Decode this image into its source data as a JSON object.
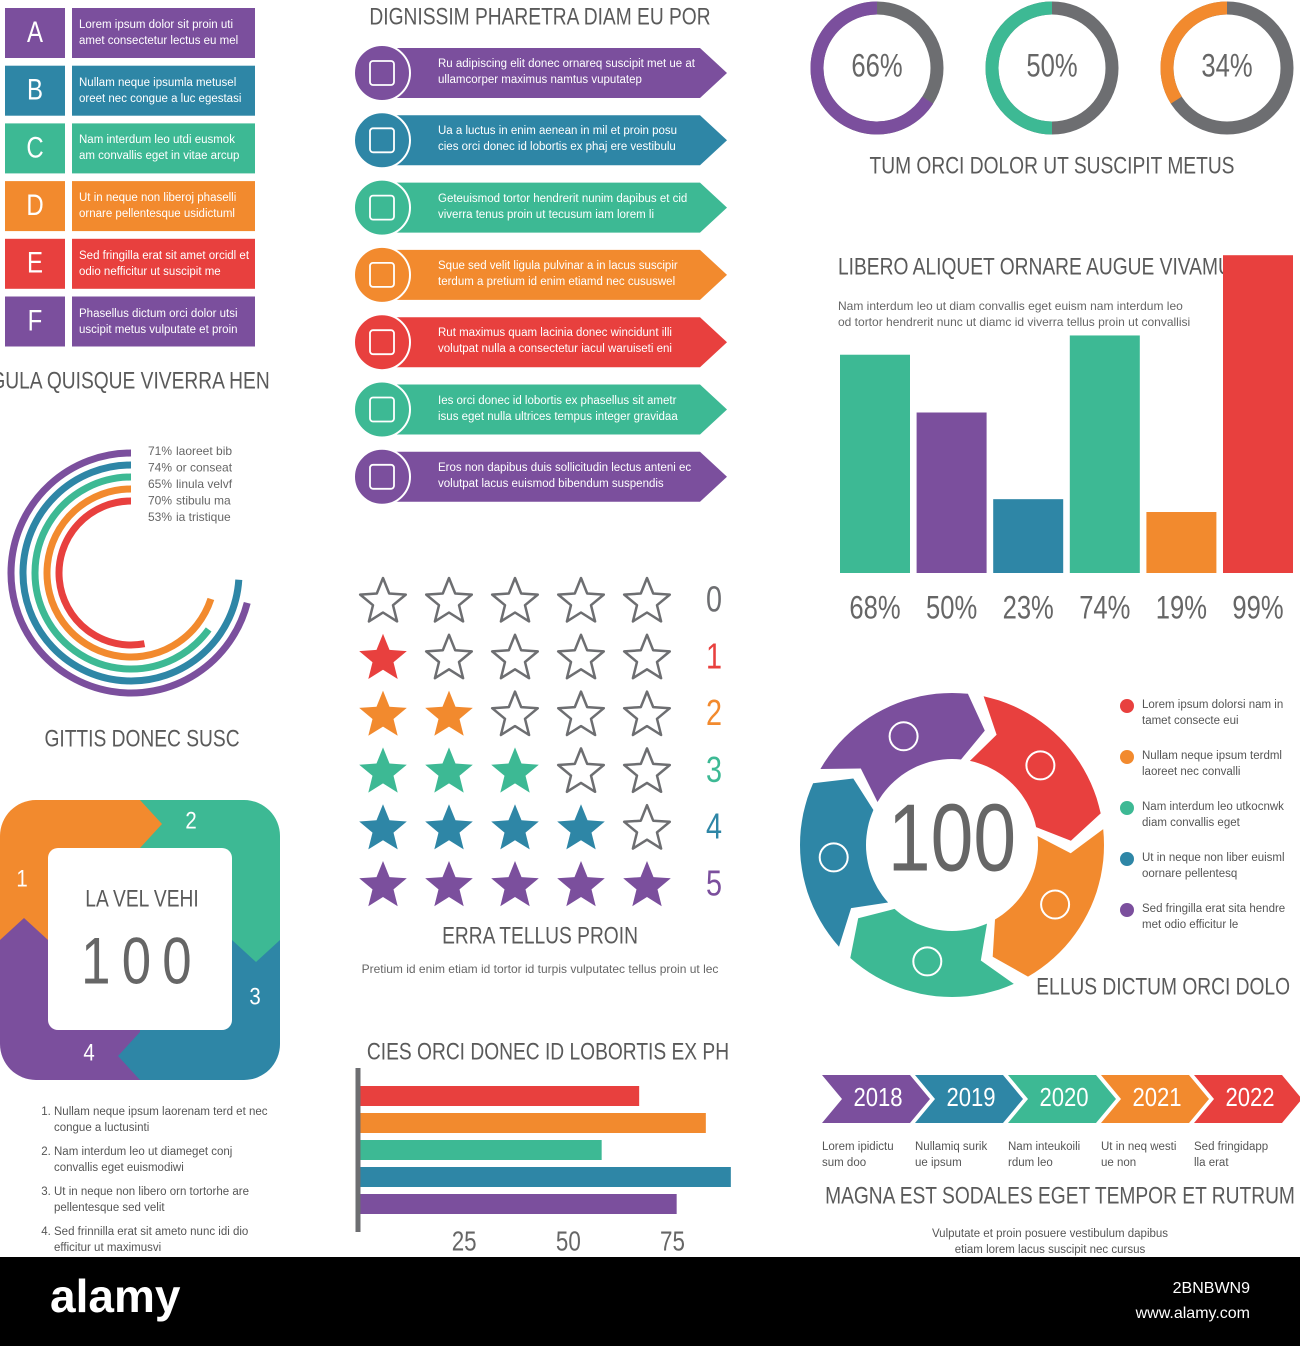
{
  "letter_list": {
    "title": "GULA QUISQUE VIVERRA HEN",
    "items": [
      {
        "letter": "A",
        "text": "Lorem ipsum dolor sit proin uti amet consectetur lectus eu mel",
        "color": "#7b4f9d"
      },
      {
        "letter": "B",
        "text": "Nullam neque ipsumla metusel oreet nec congue a luc egestasi",
        "color": "#2e86a6"
      },
      {
        "letter": "C",
        "text": "Nam interdum leo utdi eusmok am convallis eget in vitae arcup",
        "color": "#3db994"
      },
      {
        "letter": "D",
        "text": "Ut in neque non liberoj phaselli ornare pellentesque usidictuml",
        "color": "#f28a2e"
      },
      {
        "letter": "E",
        "text": "Sed fringilla erat sit amet orcidl et odio nefficitur ut suscipit me",
        "color": "#e8403e"
      },
      {
        "letter": "F",
        "text": "Phasellus dictum orci dolor utsi uscipit metus vulputate et proin",
        "color": "#7b4f9d"
      }
    ]
  },
  "arrow_list": {
    "title": "DIGNISSIM PHARETRA DIAM EU POR",
    "items": [
      {
        "text": "Ru adipiscing elit donec ornareq suscipit met ue at ullamcorper maximus namtus vuputatep",
        "color": "#7b4f9d"
      },
      {
        "text": "Ua a luctus in enim aenean in mil et proin posu cies orci donec id lobortis ex phaj ere vestibulu",
        "color": "#2e86a6"
      },
      {
        "text": "Geteuismod tortor hendrerit nunim dapibus et cid viverra tenus proin ut tecusum iam lorem li",
        "color": "#3db994"
      },
      {
        "text": "Sque sed velit ligula pulvinar a in lacus suscipir terdum a pretium id enim etiamd nec cususwel",
        "color": "#f28a2e"
      },
      {
        "text": "Rut maximus quam lacinia donec wincidunt illi volutpat nulla a consectetur iacul waruiseti eni",
        "color": "#e8403e"
      },
      {
        "text": "Ies orci donec id lobortis ex phasellus sit ametr isus eget nulla ultrices tempus integer gravidaa",
        "color": "#3db994"
      },
      {
        "text": "Eros non dapibus duis sollicitudin lectus anteni ec volutpat lacus euismod bibendum suspendis",
        "color": "#7b4f9d"
      }
    ]
  },
  "chart_data": [
    {
      "type": "donut",
      "title": "TUM ORCI DOLOR UT SUSCIPIT METUS",
      "values": [
        66,
        50,
        34
      ],
      "value_labels": [
        "66%",
        "50%",
        "34%"
      ],
      "colors": [
        "#7b4f9d",
        "#3db994",
        "#f28a2e"
      ],
      "track_color": "#6d6e71"
    },
    {
      "type": "bar",
      "title": "LIBERO ALIQUET ORNARE AUGUE VIVAMUS",
      "subtitle": "Nam interdum leo ut diam convallis eget euism nam interdum leo od tortor hendrerit nunc ut diamc id viverra tellus proin ut convallisi",
      "values": [
        68,
        50,
        23,
        74,
        19,
        99
      ],
      "value_labels": [
        "68%",
        "50%",
        "23%",
        "74%",
        "19%",
        "99%"
      ],
      "colors": [
        "#3db994",
        "#7b4f9d",
        "#2e86a6",
        "#3db994",
        "#f28a2e",
        "#e8403e"
      ],
      "ylim": [
        0,
        100
      ]
    },
    {
      "type": "radial_bar",
      "title": "GITTIS DONEC SUSC",
      "categories": [
        "laoreet bib",
        "or conseat",
        "linula velvf",
        "stibulu ma",
        "ia tristique"
      ],
      "values": [
        71,
        74,
        65,
        70,
        53
      ],
      "value_labels": [
        "71%",
        "74%",
        "65%",
        "70%",
        "53%"
      ],
      "colors": [
        "#7b4f9d",
        "#2e86a6",
        "#3db994",
        "#f28a2e",
        "#e8403e"
      ],
      "ylim": [
        0,
        100
      ]
    },
    {
      "type": "hbar",
      "title": "CIES ORCI DONEC ID LOBORTIS EX PH",
      "values": [
        67,
        83,
        58,
        89,
        76
      ],
      "colors": [
        "#e8403e",
        "#f28a2e",
        "#3db994",
        "#2e86a6",
        "#7b4f9d"
      ],
      "xlim": [
        0,
        90
      ],
      "xticks": [
        25,
        50,
        75
      ]
    }
  ],
  "rating": {
    "title": "ERRA TELLUS PROIN",
    "subtitle": "Pretium id enim etiam id tortor id turpis vulputatec tellus proin ut lec",
    "levels": [
      0,
      1,
      2,
      3,
      4,
      5
    ],
    "colors": [
      "#6d6e71",
      "#e8403e",
      "#f28a2e",
      "#3db994",
      "#2e86a6",
      "#7b4f9d"
    ],
    "empty_color": "#6d6e71"
  },
  "cycle": {
    "title": "LA VEL VEHI",
    "value": 100,
    "steps": [
      1,
      2,
      3,
      4
    ],
    "colors": [
      "#f28a2e",
      "#3db994",
      "#2e86a6",
      "#7b4f9d"
    ],
    "list": [
      "Nullam neque ipsum laorenam terd et nec congue a luctusinti",
      "Nam interdum leo ut diameget conj convallis eget euismodiwi",
      "Ut in neque non libero orn tortorhe are pellentesque sed velit",
      "Sed frinnilla erat sit ameto nunc idi dio efficitur ut maximusvi"
    ]
  },
  "circle_cycle": {
    "title": "ELLUS DICTUM ORCI DOLO",
    "value": 100,
    "items": [
      {
        "text": "Lorem ipsum dolorsi nam in tamet consecte eui",
        "color": "#e8403e"
      },
      {
        "text": "Nullam neque ipsum terdml laoreet nec convalli",
        "color": "#f28a2e"
      },
      {
        "text": "Nam interdum leo utkocnwk diam convallis eget",
        "color": "#3db994"
      },
      {
        "text": "Ut in neque non liber euisml oornare pellentesq",
        "color": "#2e86a6"
      },
      {
        "text": "Sed fringilla erat sita hendre met odio efficitur le",
        "color": "#7b4f9d"
      }
    ]
  },
  "timeline": {
    "title": "MAGNA EST SODALES EGET TEMPOR ET RUTRUM",
    "subtitle": "Vulputate et proin posuere vestibulum dapibus etiam lorem lacus suscipit nec cursus",
    "steps": [
      {
        "year": "2018",
        "text": "Lorem ipidictu sum doo",
        "color": "#7b4f9d"
      },
      {
        "year": "2019",
        "text": "Nullamiq surik ue ipsum",
        "color": "#2e86a6"
      },
      {
        "year": "2020",
        "text": "Nam inteukoili rdum leo",
        "color": "#3db994"
      },
      {
        "year": "2021",
        "text": "Ut in neq westi ue non",
        "color": "#f28a2e"
      },
      {
        "year": "2022",
        "text": "Sed fringidapp lla erat",
        "color": "#e8403e"
      }
    ]
  },
  "footer": {
    "brand": "alamy",
    "image_id": "2BNBWN9",
    "url": "www.alamy.com"
  }
}
